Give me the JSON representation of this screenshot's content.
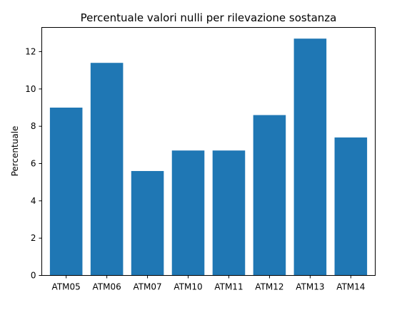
{
  "chart_data": {
    "type": "bar",
    "title": "Percentuale valori nulli per rilevazione sostanza",
    "xlabel": "",
    "ylabel": "Percentuale",
    "categories": [
      "ATM05",
      "ATM06",
      "ATM07",
      "ATM10",
      "ATM11",
      "ATM12",
      "ATM13",
      "ATM14"
    ],
    "values": [
      9.0,
      11.4,
      5.6,
      6.7,
      6.7,
      8.6,
      12.7,
      7.4
    ],
    "ylim": [
      0,
      13.3
    ],
    "yticks": [
      0,
      2,
      4,
      6,
      8,
      10,
      12
    ],
    "grid": false,
    "bar_color": "#1f77b4"
  }
}
